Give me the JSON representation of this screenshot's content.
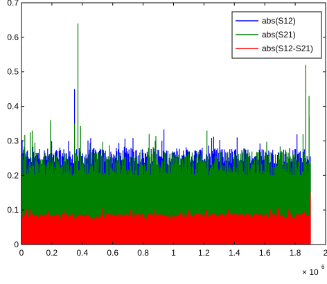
{
  "chart_data": {
    "type": "area",
    "title": "",
    "xlabel": "",
    "ylabel": "",
    "x_exponent_label": "× 10",
    "x_exponent_power": "6",
    "xlim": [
      0,
      2
    ],
    "ylim": [
      0,
      0.7
    ],
    "x_ticks": [
      0,
      0.2,
      0.4,
      0.6,
      0.8,
      1,
      1.2,
      1.4,
      1.6,
      1.8,
      2
    ],
    "x_tick_labels": [
      "0",
      "0.2",
      "0.4",
      "0.6",
      "0.8",
      "1",
      "1.2",
      "1.4",
      "1.6",
      "1.8",
      "2"
    ],
    "y_ticks": [
      0,
      0.1,
      0.2,
      0.3,
      0.4,
      0.5,
      0.6,
      0.7
    ],
    "y_tick_labels": [
      "0",
      "0.1",
      "0.2",
      "0.3",
      "0.4",
      "0.5",
      "0.6",
      "0.7"
    ],
    "grid": false,
    "legend_position": "top-right",
    "x_data_range": [
      0,
      1.9
    ],
    "series": [
      {
        "name": "abs(S12)",
        "color": "#0000ff",
        "typical_range": [
          0.23,
          0.28
        ],
        "peaks": [
          {
            "x": 0.35,
            "y": 0.45
          },
          {
            "x": 0.37,
            "y": 0.26
          },
          {
            "x": 1.89,
            "y": 0.37
          }
        ]
      },
      {
        "name": "abs(S21)",
        "color": "#008000",
        "typical_range": [
          0.2,
          0.27
        ],
        "peaks": [
          {
            "x": 0.07,
            "y": 0.33
          },
          {
            "x": 0.19,
            "y": 0.36
          },
          {
            "x": 0.37,
            "y": 0.64
          },
          {
            "x": 0.35,
            "y": 0.35
          },
          {
            "x": 0.84,
            "y": 0.32
          },
          {
            "x": 1.22,
            "y": 0.33
          },
          {
            "x": 1.85,
            "y": 0.32
          },
          {
            "x": 1.87,
            "y": 0.52
          },
          {
            "x": 1.89,
            "y": 0.43
          }
        ]
      },
      {
        "name": "abs(S12-S21)",
        "color": "#ff0000",
        "typical_range": [
          0.07,
          0.09
        ],
        "peaks": [
          {
            "x": 1.9,
            "y": 0.15
          }
        ]
      }
    ]
  }
}
